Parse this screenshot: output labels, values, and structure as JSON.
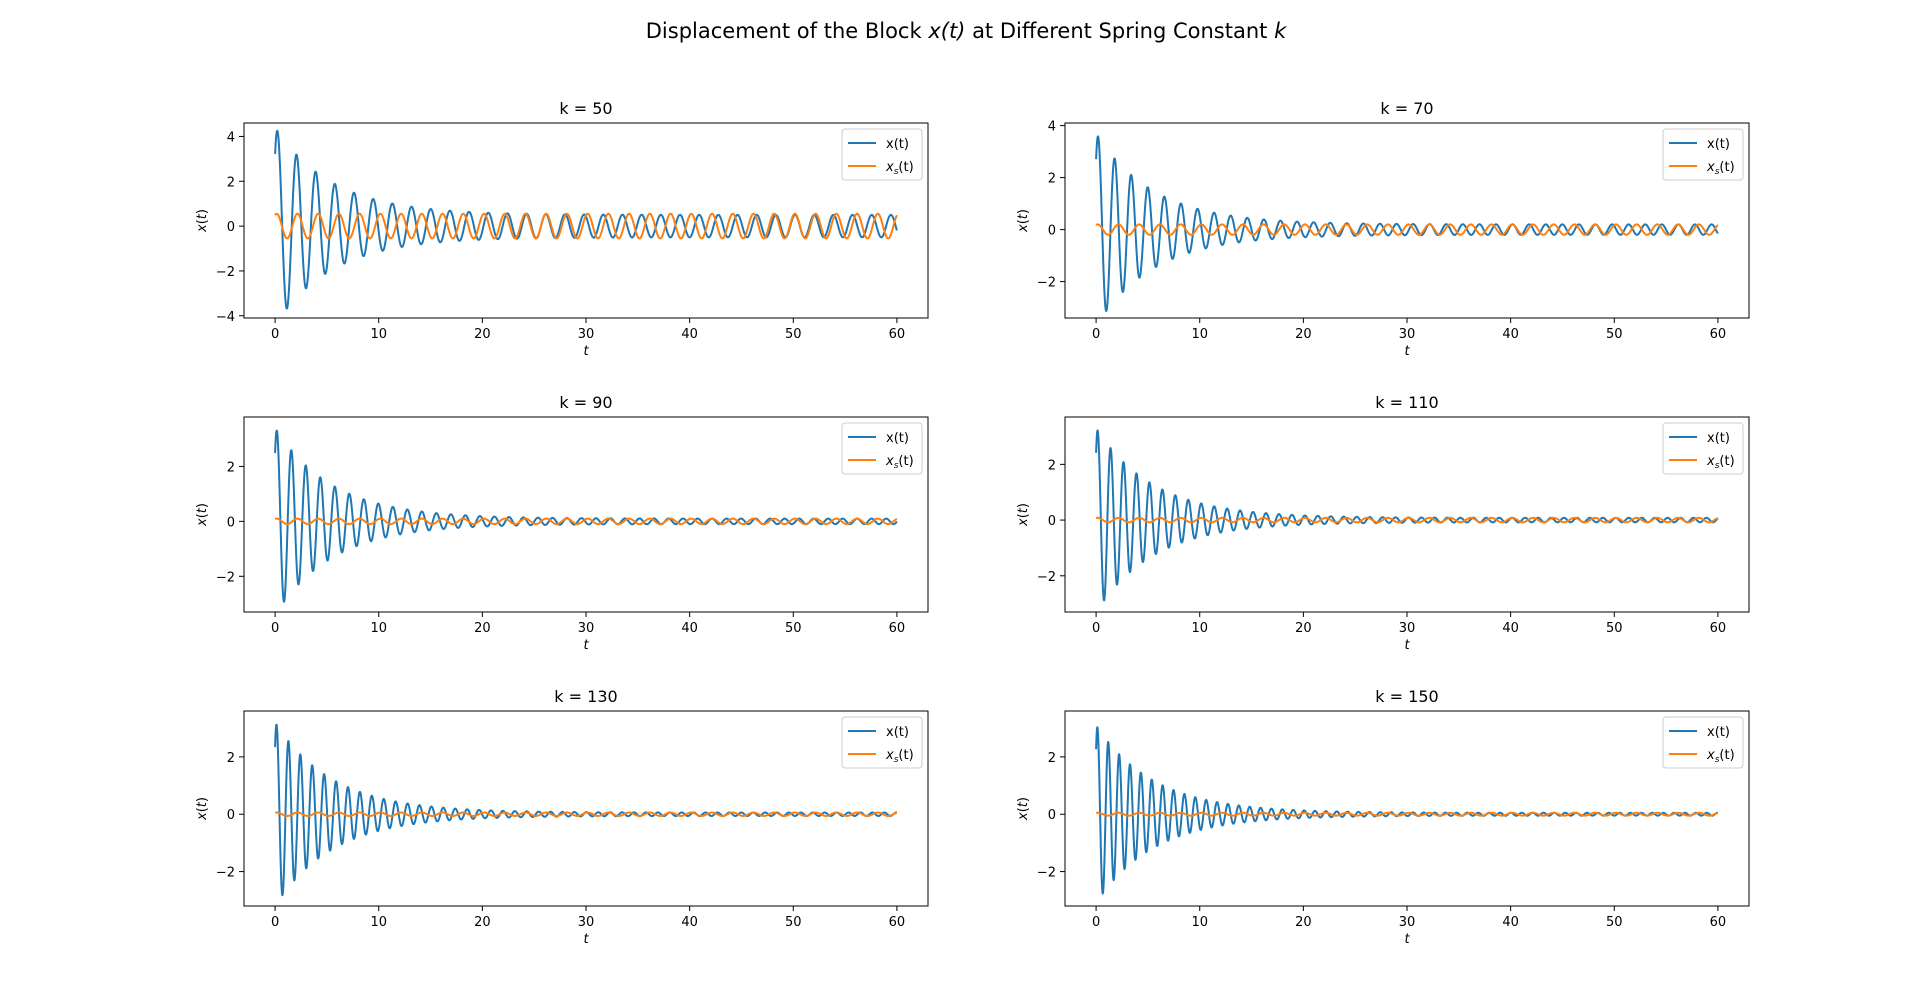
{
  "figure": {
    "title_prefix": "Displacement of the Block ",
    "title_var": "x(t)",
    "title_mid": " at Different Spring Constant ",
    "title_k": "k"
  },
  "legend": {
    "entries": [
      {
        "label": "x(t)",
        "color": "#1f77b4"
      },
      {
        "label": "x_s(t)",
        "label_main": "x",
        "label_sub": "s",
        "label_rest": "(t)",
        "color": "#ff7f0e"
      }
    ]
  },
  "chart_data": [
    {
      "type": "line",
      "title": "k = 50",
      "xlabel": "t",
      "ylabel": "x(t)",
      "xlim": [
        -3,
        63
      ],
      "ylim": [
        -4.1,
        4.6
      ],
      "xticks": [
        0,
        10,
        20,
        30,
        40,
        50,
        60
      ],
      "yticks": [
        -4,
        -2,
        0,
        2,
        4
      ],
      "legend_position": "top-right",
      "series": [
        {
          "name": "x(t)",
          "color": "#1f77b4",
          "description": "damped oscillation",
          "initial": 3.1,
          "peak": 4.4,
          "first_min": -3.8,
          "period": 1.85,
          "decay_rate": 0.18,
          "end_amplitude": 0.5
        },
        {
          "name": "x_s(t)",
          "color": "#ff7f0e",
          "description": "steady-state oscillation",
          "amplitude": 0.55,
          "period": 2.0
        }
      ]
    },
    {
      "type": "line",
      "title": "k = 70",
      "xlabel": "t",
      "ylabel": "x(t)",
      "xlim": [
        -3,
        63
      ],
      "ylim": [
        -3.4,
        4.1
      ],
      "xticks": [
        0,
        10,
        20,
        30,
        40,
        50,
        60
      ],
      "yticks": [
        -2,
        0,
        2,
        4
      ],
      "legend_position": "top-right",
      "series": [
        {
          "name": "x(t)",
          "color": "#1f77b4",
          "description": "damped oscillation",
          "initial": 2.9,
          "peak": 3.7,
          "first_min": -3.2,
          "period": 1.6,
          "decay_rate": 0.18,
          "end_amplitude": 0.2
        },
        {
          "name": "x_s(t)",
          "color": "#ff7f0e",
          "description": "steady-state oscillation",
          "amplitude": 0.2,
          "period": 2.0
        }
      ]
    },
    {
      "type": "line",
      "title": "k = 90",
      "xlabel": "t",
      "ylabel": "x(t)",
      "xlim": [
        -3,
        63
      ],
      "ylim": [
        -3.3,
        3.8
      ],
      "xticks": [
        0,
        10,
        20,
        30,
        40,
        50,
        60
      ],
      "yticks": [
        -2,
        0,
        2
      ],
      "legend_position": "top-right",
      "series": [
        {
          "name": "x(t)",
          "color": "#1f77b4",
          "description": "damped oscillation",
          "initial": 2.8,
          "peak": 3.4,
          "first_min": -3.1,
          "period": 1.4,
          "decay_rate": 0.18,
          "end_amplitude": 0.1
        },
        {
          "name": "x_s(t)",
          "color": "#ff7f0e",
          "description": "steady-state oscillation",
          "amplitude": 0.1,
          "period": 2.0
        }
      ]
    },
    {
      "type": "line",
      "title": "k = 110",
      "xlabel": "t",
      "ylabel": "x(t)",
      "xlim": [
        -3,
        63
      ],
      "ylim": [
        -3.3,
        3.7
      ],
      "xticks": [
        0,
        10,
        20,
        30,
        40,
        50,
        60
      ],
      "yticks": [
        -2,
        0,
        2
      ],
      "legend_position": "top-right",
      "series": [
        {
          "name": "x(t)",
          "color": "#1f77b4",
          "description": "damped oscillation",
          "initial": 2.8,
          "peak": 3.3,
          "first_min": -3.0,
          "period": 1.25,
          "decay_rate": 0.18,
          "end_amplitude": 0.08
        },
        {
          "name": "x_s(t)",
          "color": "#ff7f0e",
          "description": "steady-state oscillation",
          "amplitude": 0.08,
          "period": 2.0
        }
      ]
    },
    {
      "type": "line",
      "title": "k = 130",
      "xlabel": "t",
      "ylabel": "x(t)",
      "xlim": [
        -3,
        63
      ],
      "ylim": [
        -3.2,
        3.6
      ],
      "xticks": [
        0,
        10,
        20,
        30,
        40,
        50,
        60
      ],
      "yticks": [
        -2,
        0,
        2
      ],
      "legend_position": "top-right",
      "series": [
        {
          "name": "x(t)",
          "color": "#1f77b4",
          "description": "damped oscillation",
          "initial": 2.8,
          "peak": 3.2,
          "first_min": -2.9,
          "period": 1.15,
          "decay_rate": 0.18,
          "end_amplitude": 0.06
        },
        {
          "name": "x_s(t)",
          "color": "#ff7f0e",
          "description": "steady-state oscillation",
          "amplitude": 0.06,
          "period": 2.0
        }
      ]
    },
    {
      "type": "line",
      "title": "k = 150",
      "xlabel": "t",
      "ylabel": "x(t)",
      "xlim": [
        -3,
        63
      ],
      "ylim": [
        -3.2,
        3.6
      ],
      "xticks": [
        0,
        10,
        20,
        30,
        40,
        50,
        60
      ],
      "yticks": [
        -2,
        0,
        2
      ],
      "legend_position": "top-right",
      "series": [
        {
          "name": "x(t)",
          "color": "#1f77b4",
          "description": "damped oscillation",
          "initial": 2.8,
          "peak": 3.1,
          "first_min": -2.85,
          "period": 1.05,
          "decay_rate": 0.18,
          "end_amplitude": 0.05
        },
        {
          "name": "x_s(t)",
          "color": "#ff7f0e",
          "description": "steady-state oscillation",
          "amplitude": 0.05,
          "period": 2.0
        }
      ]
    }
  ]
}
